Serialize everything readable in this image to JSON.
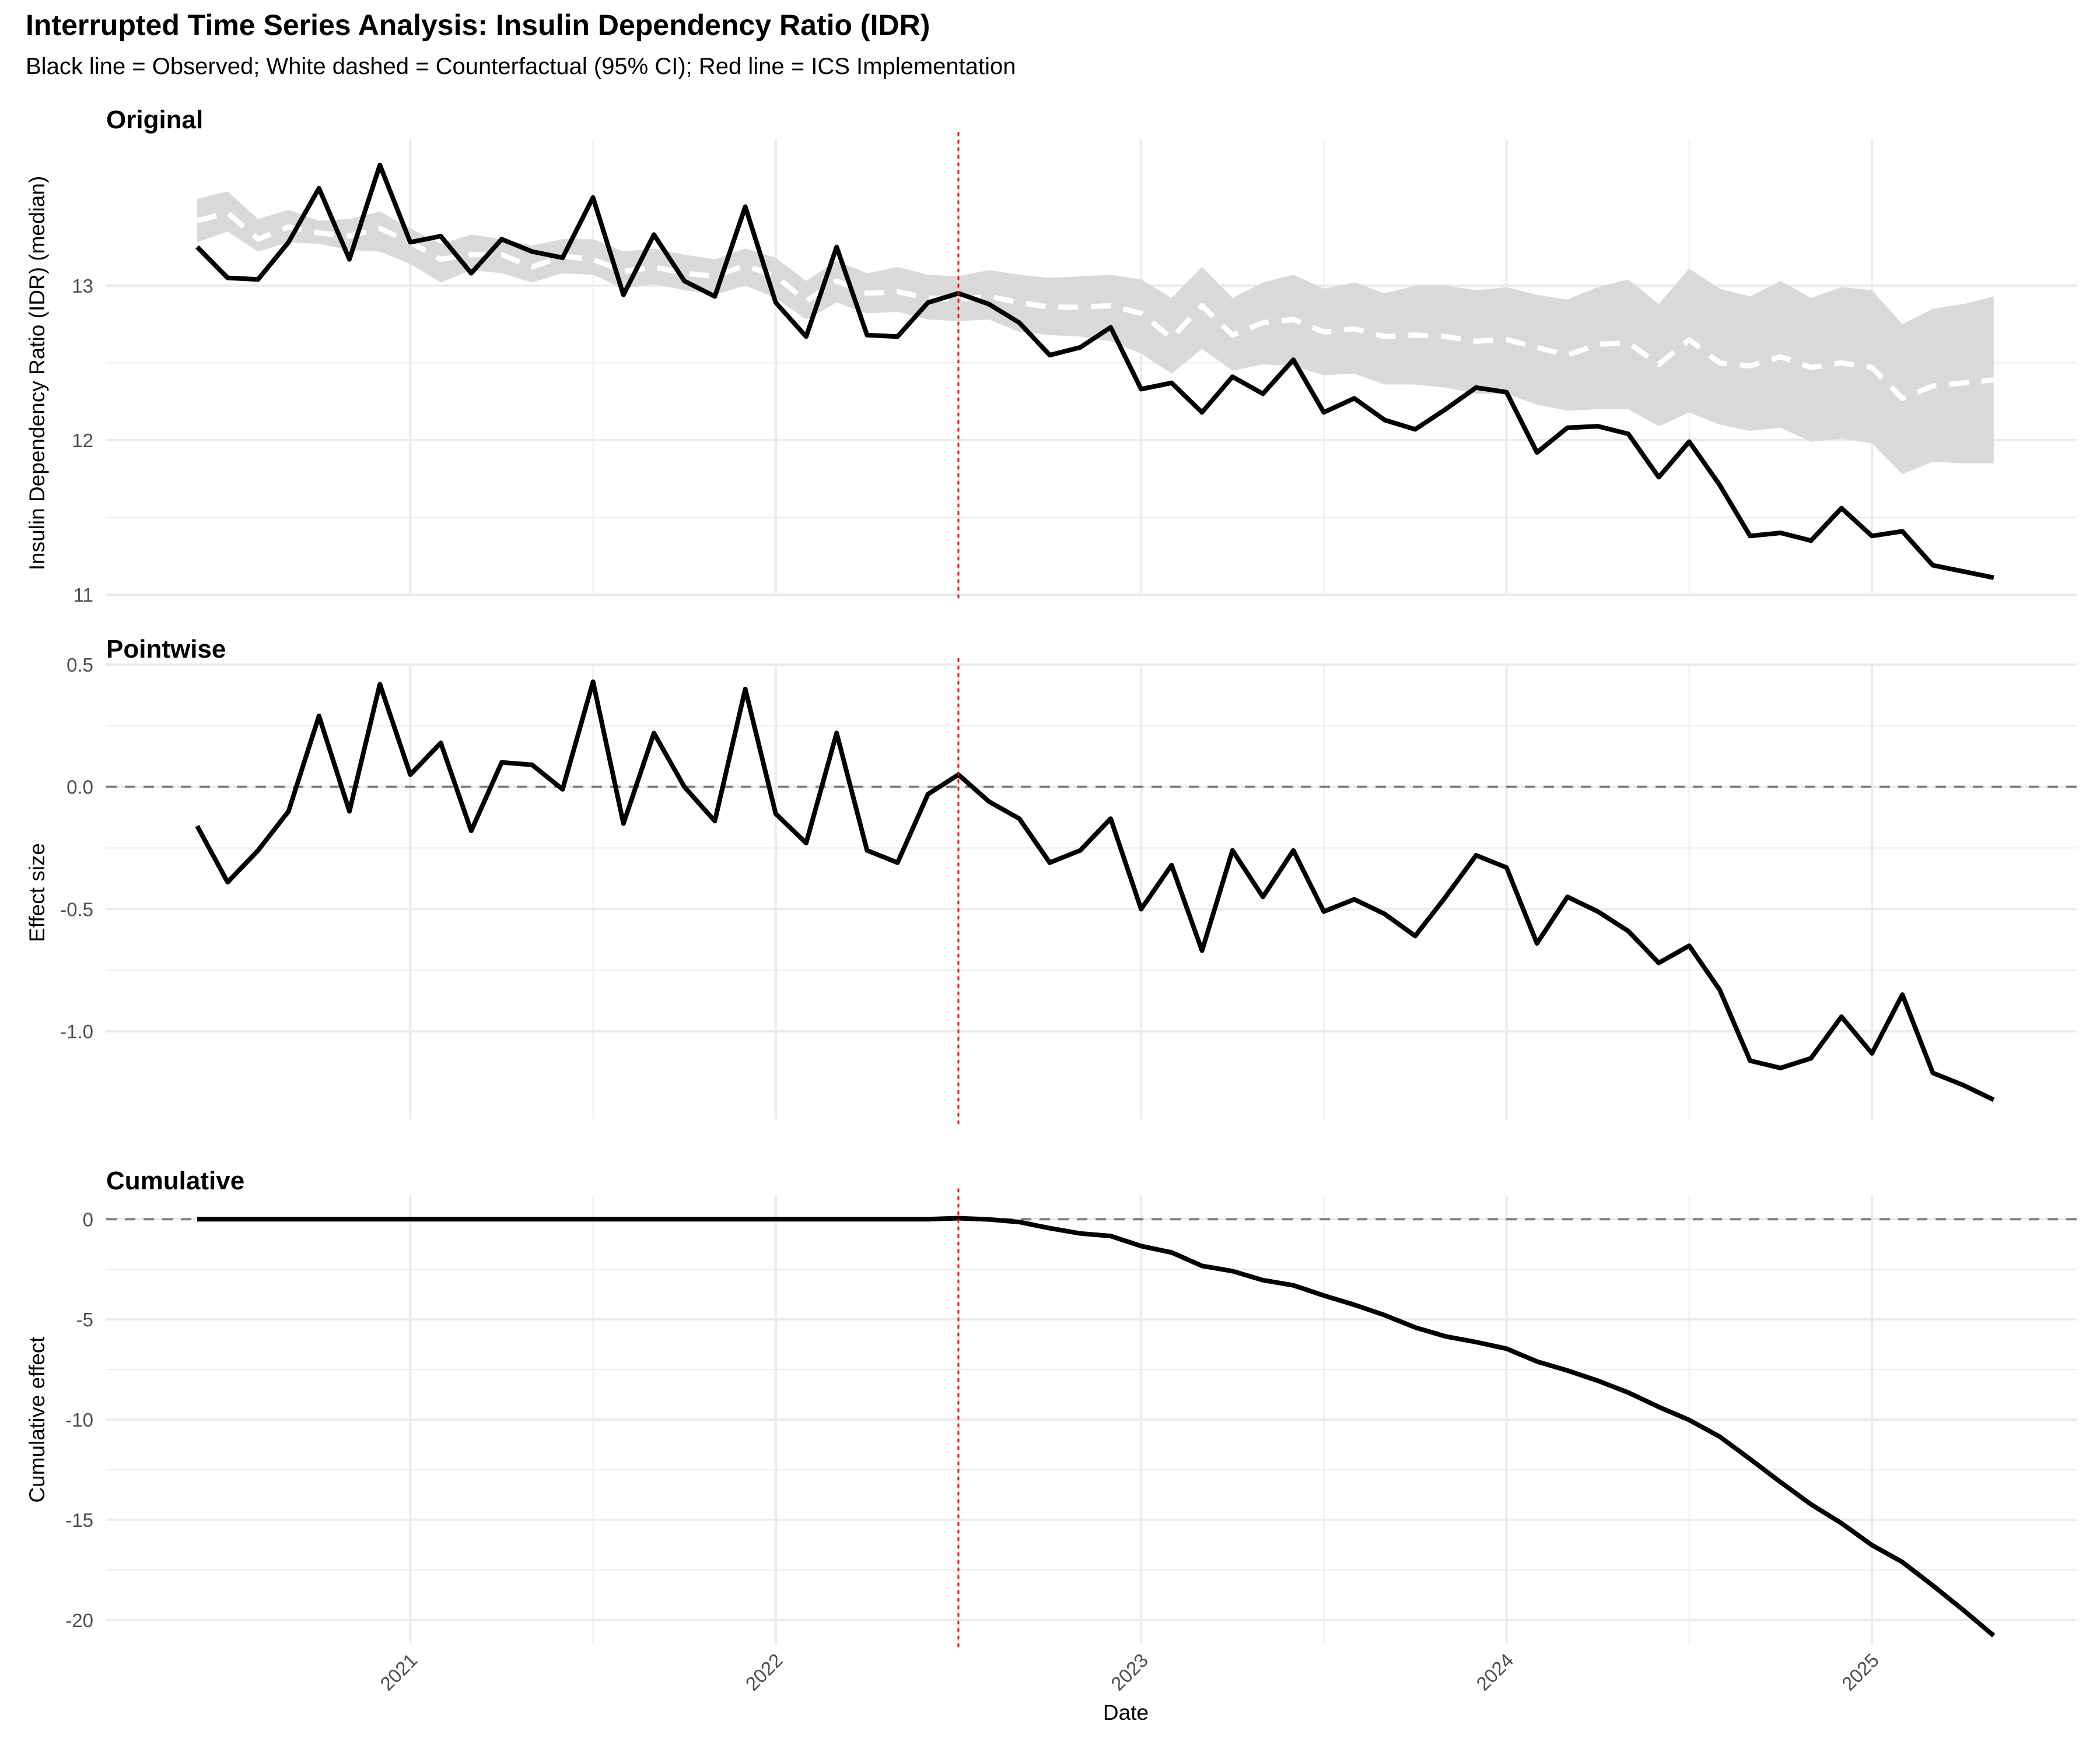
{
  "title": "Interrupted Time Series Analysis: Insulin Dependency Ratio (IDR)",
  "subtitle": "Black line = Observed; White dashed = Counterfactual (95% CI); Red line = ICS Implementation",
  "colors": {
    "observed": "#000000",
    "counterfactual": "#ffffff",
    "ci_band": "#d9d9d9",
    "intervention": "#ff0000",
    "zero_line": "#808080",
    "grid": "#ebebeb"
  },
  "chart_data": {
    "type": "line",
    "xlabel": "Date",
    "x_ticks": [
      "2021",
      "2022",
      "2023",
      "2024",
      "2025"
    ],
    "x_start": "2020-06",
    "intervention_date": "2022-07",
    "legend": "none",
    "grid": true,
    "panels": [
      {
        "title": "Original",
        "ylabel": "Insulin Dependency Ratio (IDR) (median)",
        "yticks": [
          11,
          12,
          13
        ],
        "ylim": [
          11,
          13.95
        ],
        "series": [
          {
            "name": "Observed",
            "values": [
              13.25,
              13.05,
              13.04,
              13.28,
              13.63,
              13.17,
              13.78,
              13.28,
              13.32,
              13.08,
              13.3,
              13.22,
              13.18,
              13.57,
              12.94,
              13.33,
              13.03,
              12.93,
              13.51,
              12.89,
              12.67,
              13.25,
              12.68,
              12.67,
              12.89,
              12.95,
              12.88,
              12.76,
              12.55,
              12.6,
              12.73,
              12.33,
              12.37,
              12.18,
              12.41,
              12.3,
              12.52,
              12.18,
              12.27,
              12.13,
              12.07,
              12.2,
              12.34,
              12.31,
              11.92,
              12.08,
              12.09,
              12.04,
              11.76,
              11.99,
              11.71,
              11.38,
              11.4,
              11.35,
              11.56,
              11.38,
              11.41,
              11.19,
              11.15,
              11.11
            ]
          },
          {
            "name": "Counterfactual",
            "values": [
              13.42,
              13.47,
              13.3,
              13.38,
              13.34,
              13.32,
              13.37,
              13.28,
              13.17,
              13.2,
              13.2,
              13.12,
              13.19,
              13.17,
              13.09,
              13.12,
              13.08,
              13.06,
              13.13,
              13.06,
              12.9,
              13.03,
              12.95,
              12.96,
              12.92,
              12.91,
              12.93,
              12.89,
              12.86,
              12.86,
              12.87,
              12.82,
              12.66,
              12.87,
              12.68,
              12.76,
              12.78,
              12.7,
              12.72,
              12.67,
              12.68,
              12.67,
              12.64,
              12.65,
              12.6,
              12.55,
              12.62,
              12.63,
              12.49,
              12.65,
              12.5,
              12.48,
              12.54,
              12.47,
              12.5,
              12.47,
              12.27,
              12.35,
              12.37,
              12.39
            ]
          },
          {
            "name": "CI lower",
            "values": [
              13.28,
              13.35,
              13.22,
              13.28,
              13.27,
              13.23,
              13.22,
              13.14,
              13.02,
              13.1,
              13.08,
              13.02,
              13.08,
              13.07,
              12.98,
              13.01,
              12.97,
              12.94,
              13.0,
              12.92,
              12.78,
              12.89,
              12.82,
              12.83,
              12.78,
              12.77,
              12.78,
              12.7,
              12.68,
              12.67,
              12.64,
              12.56,
              12.43,
              12.59,
              12.45,
              12.49,
              12.48,
              12.42,
              12.43,
              12.36,
              12.36,
              12.34,
              12.3,
              12.3,
              12.23,
              12.19,
              12.2,
              12.2,
              12.09,
              12.18,
              12.1,
              12.06,
              12.08,
              11.99,
              12.01,
              11.98,
              11.78,
              11.86,
              11.85,
              11.85
            ]
          },
          {
            "name": "CI upper",
            "values": [
              13.56,
              13.61,
              13.43,
              13.49,
              13.42,
              13.43,
              13.48,
              13.37,
              13.27,
              13.33,
              13.3,
              13.26,
              13.3,
              13.3,
              13.22,
              13.24,
              13.2,
              13.17,
              13.24,
              13.18,
              13.03,
              13.16,
              13.08,
              13.12,
              13.07,
              13.06,
              13.1,
              13.07,
              13.05,
              13.06,
              13.07,
              13.04,
              12.92,
              13.12,
              12.92,
              13.02,
              13.07,
              12.98,
              13.02,
              12.95,
              13.0,
              13.0,
              12.97,
              12.99,
              12.94,
              12.91,
              12.99,
              13.04,
              12.88,
              13.11,
              12.98,
              12.93,
              13.03,
              12.92,
              12.99,
              12.97,
              12.75,
              12.85,
              12.88,
              12.93
            ]
          }
        ]
      },
      {
        "title": "Pointwise",
        "ylabel": "Effect size",
        "yticks": [
          -1.0,
          -0.5,
          0.0,
          0.5
        ],
        "ytick_labels": [
          "-1.0",
          "-0.5",
          "0.0",
          "0.5"
        ],
        "ylim": [
          -1.36,
          0.5
        ],
        "series": [
          {
            "name": "Pointwise effect",
            "values": [
              -0.16,
              -0.39,
              -0.26,
              -0.1,
              0.29,
              -0.1,
              0.42,
              0.05,
              0.18,
              -0.18,
              0.1,
              0.09,
              -0.01,
              0.43,
              -0.15,
              0.22,
              0.0,
              -0.14,
              0.4,
              -0.11,
              -0.23,
              0.22,
              -0.26,
              -0.31,
              -0.03,
              0.05,
              -0.06,
              -0.13,
              -0.31,
              -0.26,
              -0.13,
              -0.5,
              -0.32,
              -0.67,
              -0.26,
              -0.45,
              -0.26,
              -0.51,
              -0.46,
              -0.52,
              -0.61,
              -0.45,
              -0.28,
              -0.33,
              -0.64,
              -0.45,
              -0.51,
              -0.59,
              -0.72,
              -0.65,
              -0.83,
              -1.12,
              -1.15,
              -1.11,
              -0.94,
              -1.09,
              -0.85,
              -1.17,
              -1.22,
              -1.28
            ]
          }
        ]
      },
      {
        "title": "Cumulative",
        "ylabel": "Cumulative effect",
        "yticks": [
          -20,
          -15,
          -10,
          -5,
          0
        ],
        "ylim": [
          -21.2,
          1.2
        ],
        "series": [
          {
            "name": "Cumulative effect",
            "values": [
              0,
              0,
              0,
              0,
              0,
              0,
              0,
              0,
              0,
              0,
              0,
              0,
              0,
              0,
              0,
              0,
              0,
              0,
              0,
              0,
              0,
              0,
              0,
              0,
              0,
              0.05,
              -0.01,
              -0.14,
              -0.45,
              -0.71,
              -0.84,
              -1.34,
              -1.66,
              -2.33,
              -2.59,
              -3.04,
              -3.3,
              -3.81,
              -4.27,
              -4.79,
              -5.4,
              -5.85,
              -6.13,
              -6.46,
              -7.1,
              -7.55,
              -8.06,
              -8.65,
              -9.37,
              -10.02,
              -10.85,
              -11.97,
              -13.12,
              -14.23,
              -15.17,
              -16.26,
              -17.11,
              -18.28,
              -19.5,
              -20.78
            ]
          }
        ]
      }
    ]
  }
}
